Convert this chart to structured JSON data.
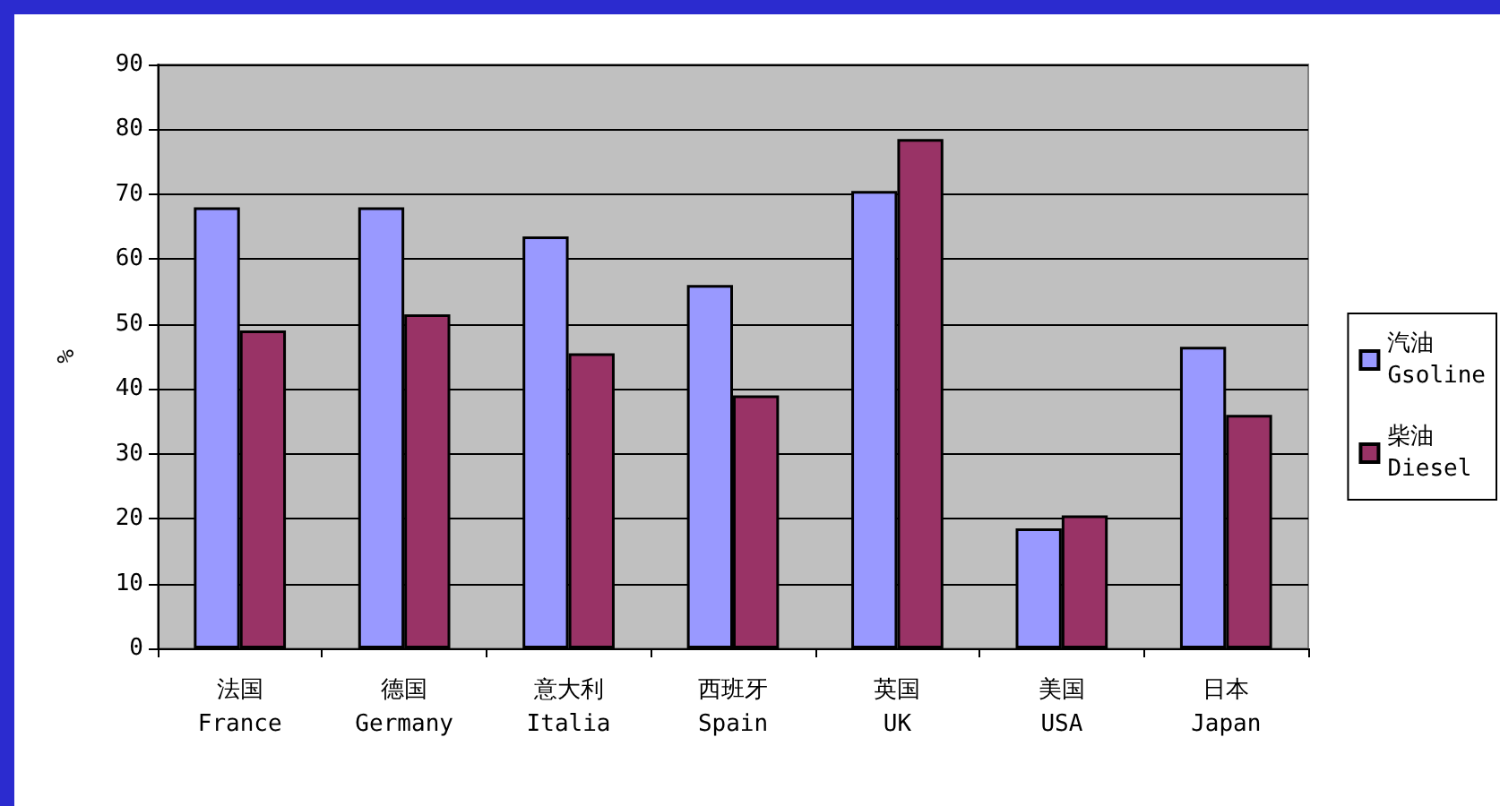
{
  "chart_data": {
    "type": "bar",
    "ylabel": "%",
    "categories": [
      "法国\nFrance",
      "德国\nGermany",
      "意大利\nItalia",
      "西班牙\nSpain",
      "英国\nUK",
      "美国\nUSA",
      "日本\nJapan"
    ],
    "series": [
      {
        "name": "汽油\nGsoline",
        "color": "#9999ff",
        "values": [
          68,
          68,
          63.5,
          56,
          70.5,
          18.5,
          46.5
        ]
      },
      {
        "name": "柴油\nDiesel",
        "color": "#993366",
        "values": [
          49,
          51.5,
          45.5,
          39,
          78.5,
          20.5,
          36
        ]
      }
    ],
    "ylim": [
      0,
      90
    ],
    "yticks": [
      0,
      10,
      20,
      30,
      40,
      50,
      60,
      70,
      80,
      90
    ],
    "grid": "y",
    "legend": "right"
  }
}
